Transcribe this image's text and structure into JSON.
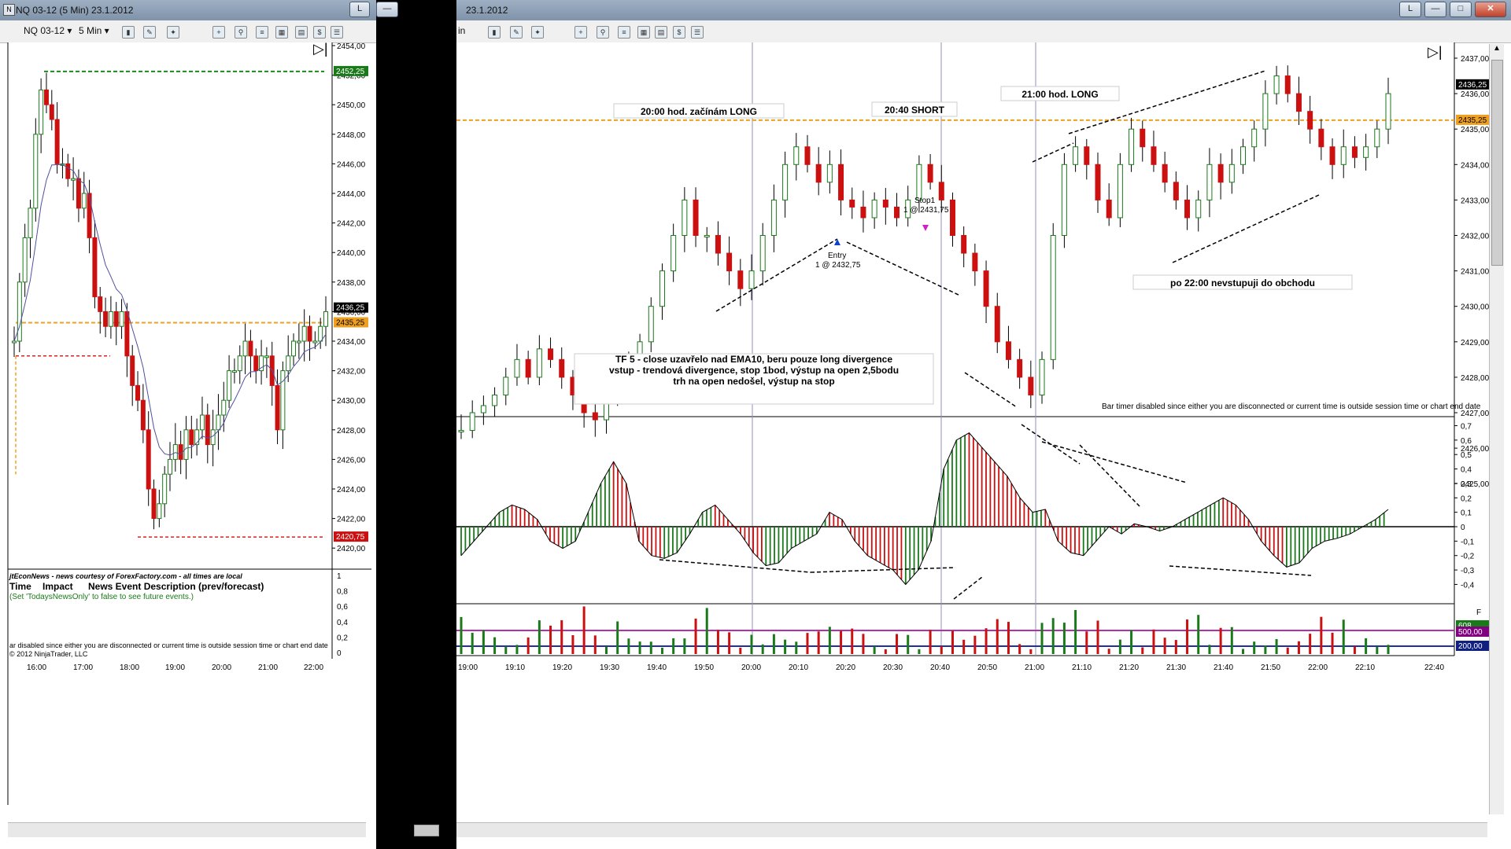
{
  "left_window": {
    "title": "NQ 03-12 (5 Min)  23.1.2012",
    "restore_label": "L",
    "instrument": "NQ 03-12",
    "interval": "5 Min",
    "y_ticks": [
      "2454,00",
      "2452,00",
      "2450,00",
      "2448,00",
      "2446,00",
      "2444,00",
      "2442,00",
      "2440,00",
      "2438,00",
      "2436,00",
      "2434,00",
      "2432,00",
      "2430,00",
      "2428,00",
      "2426,00",
      "2424,00",
      "2422,00",
      "2420,00"
    ],
    "x_ticks": [
      "16:00",
      "17:00",
      "18:00",
      "19:00",
      "20:00",
      "21:00",
      "22:00"
    ],
    "price_badges": {
      "green": "2452,25",
      "last": "2436,25",
      "orange": "2435,25",
      "red": "2420,75"
    },
    "news": {
      "header": "jtEconNews - news courtesy of ForexFactory.com - all times are local",
      "col_time": "Time",
      "col_impact": "Impact",
      "col_desc": "News Event Description (prev/forecast)",
      "hint": "(Set 'TodaysNewsOnly' to false to see future events.)",
      "bar_timer": "ar disabled since either you are disconnected or current time is outside session time or chart end date",
      "copyright": "© 2012 NinjaTrader, LLC",
      "ind_ticks": [
        "1",
        "0,8",
        "0,6",
        "0,4",
        "0,2",
        "0"
      ]
    }
  },
  "right_window": {
    "title": "23.1.2012",
    "toolbar_prefix": "in",
    "restore_label": "L",
    "y_ticks": [
      "2437,00",
      "2436,00",
      "2435,00",
      "2434,00",
      "2433,00",
      "2432,00",
      "2431,00",
      "2430,00",
      "2429,00",
      "2428,00",
      "2427,00",
      "2426,00",
      "2425,00"
    ],
    "osc_ticks": [
      "0,7",
      "0,6",
      "0,5",
      "0,4",
      "0,3",
      "0,2",
      "0,1",
      "0",
      "-0,1",
      "-0,2",
      "-0,3",
      "-0,4"
    ],
    "x_ticks": [
      "19:00",
      "19:10",
      "19:20",
      "19:30",
      "19:40",
      "19:50",
      "20:00",
      "20:10",
      "20:20",
      "20:30",
      "20:40",
      "20:50",
      "21:00",
      "21:10",
      "21:20",
      "21:30",
      "21:40",
      "21:50",
      "22:00",
      "22:10",
      "22:40"
    ],
    "price_badges": {
      "last": "2436,25",
      "orange": "2435,25"
    },
    "volume_badges": {
      "green": "608",
      "purple": "500,00",
      "blue": "200,00"
    },
    "annotations": {
      "long1": "20:00 hod. začínám LONG",
      "short1": "20:40 SHORT",
      "long2": "21:00 hod.  LONG",
      "no_trade": "po 22:00 nevstupuji do obchodu",
      "note_line1": "TF 5 - close uzavřelo nad EMA10, beru pouze long divergence",
      "note_line2": "vstup - trendová divergence, stop 1bod, výstup na open 2,5bodu",
      "note_line3": "trh na open nedošel, výstup na stop",
      "entry_label": "Entry",
      "entry_detail": "1 @ 2432,75",
      "stop_label": "Stop1",
      "stop_detail": "1 @ 2431,75",
      "bar_timer": "Bar timer disabled since either you are disconnected or current time is outside session time or chart end date"
    }
  },
  "colors": {
    "up": "#1a7a1a",
    "down": "#cc1010",
    "orange_line": "#f0a020",
    "green_line": "#1a8a1a",
    "red_line": "#dd2020",
    "ema": "#5050a0"
  }
}
